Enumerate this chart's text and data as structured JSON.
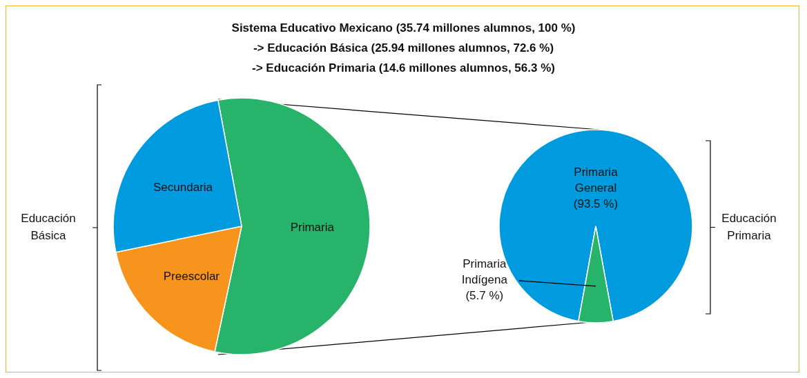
{
  "chart_data": [
    {
      "type": "pie",
      "title": "Sistema Educativo Mexicano (35.74 millones alumnos, 100 %)\n-> Educación Básica (25.94 millones alumnos, 72.6 %)\n-> Educación Primaria (14.6 millones alumnos, 56.3 %)",
      "categories": [
        "Primaria",
        "Preescolar",
        "Secundaria"
      ],
      "values": [
        56.3,
        18.4,
        25.3
      ],
      "colors": [
        "#27b36a",
        "#f7941d",
        "#009bde"
      ],
      "annotations": [
        "Educación Básica"
      ]
    },
    {
      "type": "pie",
      "categories": [
        "Primaria General",
        "Primaria Indígena"
      ],
      "values": [
        93.5,
        5.7
      ],
      "colors": [
        "#009bde",
        "#27b36a"
      ],
      "value_labels": [
        "(93.5 %)",
        "(5.7 %)"
      ],
      "annotations": [
        "Educación Primaria"
      ]
    }
  ]
}
